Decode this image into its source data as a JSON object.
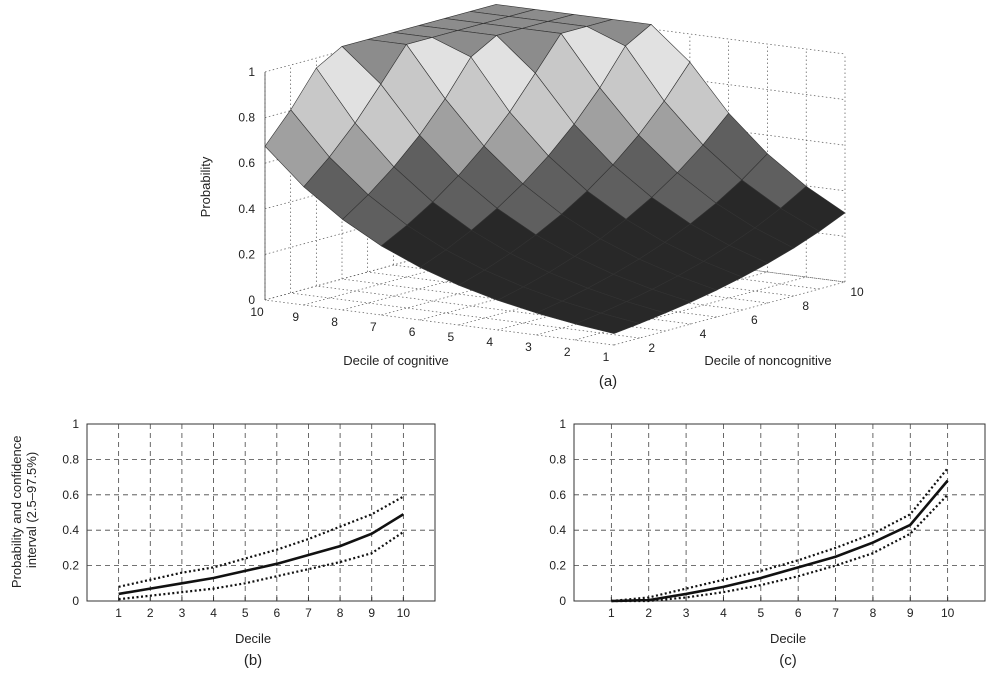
{
  "chart_data": [
    {
      "panel": "(a)",
      "type": "surface",
      "xlabel": "Decile of cognitive",
      "ylabel": "Decile of noncognitive",
      "zlabel": "Probability",
      "x_ticks": [
        "1",
        "2",
        "3",
        "4",
        "5",
        "6",
        "7",
        "8",
        "9",
        "10"
      ],
      "y_ticks": [
        "2",
        "4",
        "6",
        "8",
        "10"
      ],
      "z_ticks": [
        "0",
        "0.2",
        "0.4",
        "0.6",
        "0.8",
        "1"
      ],
      "zlim": [
        0,
        1
      ],
      "grid": true
    },
    {
      "panel": "(b)",
      "type": "line",
      "xlabel": "Decile",
      "ylabel": "Probability and confidence interval (2.5–97.5%)",
      "ylabel_lines": [
        "Probability and confidence",
        "interval (2.5–97.5%)"
      ],
      "x": [
        1,
        2,
        3,
        4,
        5,
        6,
        7,
        8,
        9,
        10
      ],
      "xlim": [
        0,
        11
      ],
      "ylim": [
        0,
        1
      ],
      "x_ticks": [
        "1",
        "2",
        "3",
        "4",
        "5",
        "6",
        "7",
        "8",
        "9",
        "10"
      ],
      "y_ticks": [
        "0",
        "0.2",
        "0.4",
        "0.6",
        "0.8",
        "1"
      ],
      "grid": true,
      "series": [
        {
          "role": "estimate",
          "style": "solid",
          "values": [
            0.04,
            0.07,
            0.1,
            0.13,
            0.17,
            0.21,
            0.26,
            0.31,
            0.38,
            0.49
          ]
        },
        {
          "role": "upper",
          "style": "dotted",
          "values": [
            0.08,
            0.12,
            0.16,
            0.19,
            0.24,
            0.29,
            0.35,
            0.42,
            0.49,
            0.59
          ]
        },
        {
          "role": "lower",
          "style": "dotted",
          "values": [
            0.01,
            0.03,
            0.05,
            0.07,
            0.1,
            0.14,
            0.18,
            0.22,
            0.27,
            0.39
          ]
        }
      ]
    },
    {
      "panel": "(c)",
      "type": "line",
      "xlabel": "Decile",
      "ylabel": "",
      "x": [
        1,
        2,
        3,
        4,
        5,
        6,
        7,
        8,
        9,
        10
      ],
      "xlim": [
        0,
        11
      ],
      "ylim": [
        0,
        1
      ],
      "x_ticks": [
        "1",
        "2",
        "3",
        "4",
        "5",
        "6",
        "7",
        "8",
        "9",
        "10"
      ],
      "y_ticks": [
        "0",
        "0.2",
        "0.4",
        "0.6",
        "0.8",
        "1"
      ],
      "grid": true,
      "series": [
        {
          "role": "estimate",
          "style": "solid",
          "values": [
            0.0,
            0.005,
            0.04,
            0.08,
            0.13,
            0.19,
            0.25,
            0.33,
            0.43,
            0.68
          ]
        },
        {
          "role": "upper",
          "style": "dotted",
          "values": [
            0.0,
            0.02,
            0.07,
            0.12,
            0.17,
            0.23,
            0.3,
            0.38,
            0.49,
            0.75
          ]
        },
        {
          "role": "lower",
          "style": "dotted",
          "values": [
            0.0,
            0.0,
            0.02,
            0.05,
            0.09,
            0.14,
            0.2,
            0.27,
            0.38,
            0.6
          ]
        }
      ]
    }
  ]
}
